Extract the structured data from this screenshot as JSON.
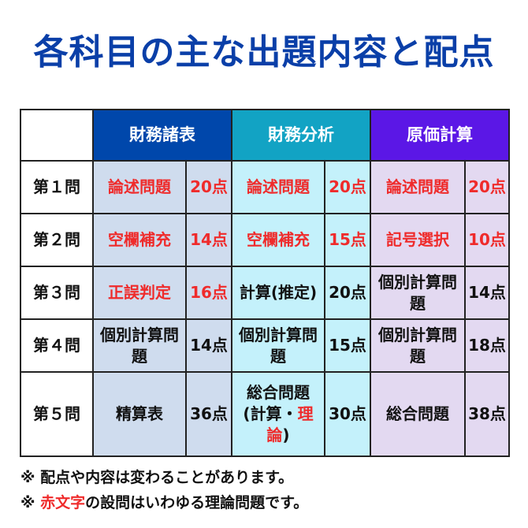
{
  "title": "各科目の主な出題内容と配点",
  "colors": {
    "title": "#0a3fa8",
    "zaimu_shohyo": "#0047ab",
    "zaimu_bunseki": "#12a3c4",
    "genka_keisan": "#5b17e6",
    "red": "#ef2b2b"
  },
  "headers": [
    "財務諸表",
    "財務分析",
    "原価計算"
  ],
  "rows": [
    {
      "label": "第１問",
      "cells": [
        {
          "t": "論述問題",
          "p": "20点",
          "red": true
        },
        {
          "t": "論述問題",
          "p": "20点",
          "red": true
        },
        {
          "t": "論述問題",
          "p": "20点",
          "red": true
        }
      ]
    },
    {
      "label": "第２問",
      "cells": [
        {
          "t": "空欄補充",
          "p": "14点",
          "red": true
        },
        {
          "t": "空欄補充",
          "p": "15点",
          "red": true
        },
        {
          "t": "記号選択",
          "p": "10点",
          "red": true
        }
      ]
    },
    {
      "label": "第３問",
      "cells": [
        {
          "t": "正誤判定",
          "p": "16点",
          "red": true
        },
        {
          "t": "計算(推定)",
          "p": "20点",
          "red": false
        },
        {
          "t": "個別計算問題",
          "p": "14点",
          "red": false
        }
      ]
    },
    {
      "label": "第４問",
      "cells": [
        {
          "t": "個別計算問題",
          "p": "14点",
          "red": false
        },
        {
          "t": "個別計算問題",
          "p": "15点",
          "red": false
        },
        {
          "t": "個別計算問題",
          "p": "18点",
          "red": false
        }
      ]
    },
    {
      "label": "第５問",
      "cells": [
        {
          "t": "精算表",
          "p": "36点"
        },
        {
          "line1": "総合問題",
          "pre": "(計算・",
          "redpart": "理論",
          "post": ")",
          "p": "30点"
        },
        {
          "t": "総合問題",
          "p": "38点"
        }
      ]
    }
  ],
  "notes": {
    "line1": "※ 配点や内容は変わることがあります。",
    "line2_pre": "※ ",
    "line2_red": "赤文字",
    "line2_post": "の設問はいわゆる理論問題です。"
  }
}
